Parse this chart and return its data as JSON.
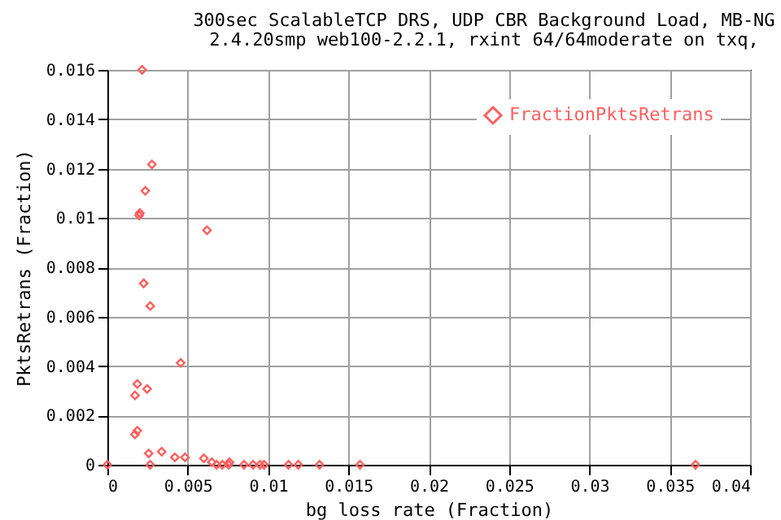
{
  "chart_data": {
    "type": "scatter",
    "title": "300sec ScalableTCP DRS, UDP CBR Background Load, MB-NG",
    "subtitle": "2.4.20smp web100-2.2.1, rxint 64/64moderate on txq,",
    "xlabel": "bg loss rate (Fraction)",
    "ylabel": "PktsRetrans (Fraction)",
    "xlim": [
      0,
      0.04
    ],
    "xticks": [
      0,
      0.005,
      0.01,
      0.015,
      0.02,
      0.025,
      0.03,
      0.035,
      0.04
    ],
    "ylim": [
      0,
      0.016
    ],
    "yticks": [
      0,
      0.002,
      0.004,
      0.006,
      0.008,
      0.01,
      0.012,
      0.014,
      0.016
    ],
    "grid": true,
    "legend": "top right",
    "marker": "diamond",
    "series": [
      {
        "name": "FractionPktsRetrans",
        "color": "#ff5f5f",
        "x": [
          0.00216,
          0.00277,
          0.00236,
          0.00202,
          0.00198,
          0.0062,
          0.00226,
          0.00267,
          0.00456,
          0.00186,
          0.00247,
          0.00172,
          0.00186,
          0.00172,
          0.00257,
          0.00338,
          0.0042,
          0.00483,
          0.006,
          0.0065,
          0.0076,
          0.0068,
          0,
          0.00266,
          0.00715,
          0.00755,
          0.0085,
          0.00907,
          0.0095,
          0.00975,
          0.01127,
          0.01188,
          0.0132,
          0.01572,
          0.0366
        ],
        "values": [
          0.016,
          0.01217,
          0.0111,
          0.0102,
          0.0101,
          0.0095,
          0.00735,
          0.00643,
          0.00413,
          0.00327,
          0.00307,
          0.00281,
          0.00138,
          0.00123,
          0.00046,
          0.00053,
          0.0003,
          0.0003,
          0.00026,
          0.0001,
          0.0001,
          0,
          0,
          0,
          0,
          0,
          0,
          0,
          0,
          0,
          0,
          0,
          0,
          0,
          0
        ]
      }
    ]
  }
}
